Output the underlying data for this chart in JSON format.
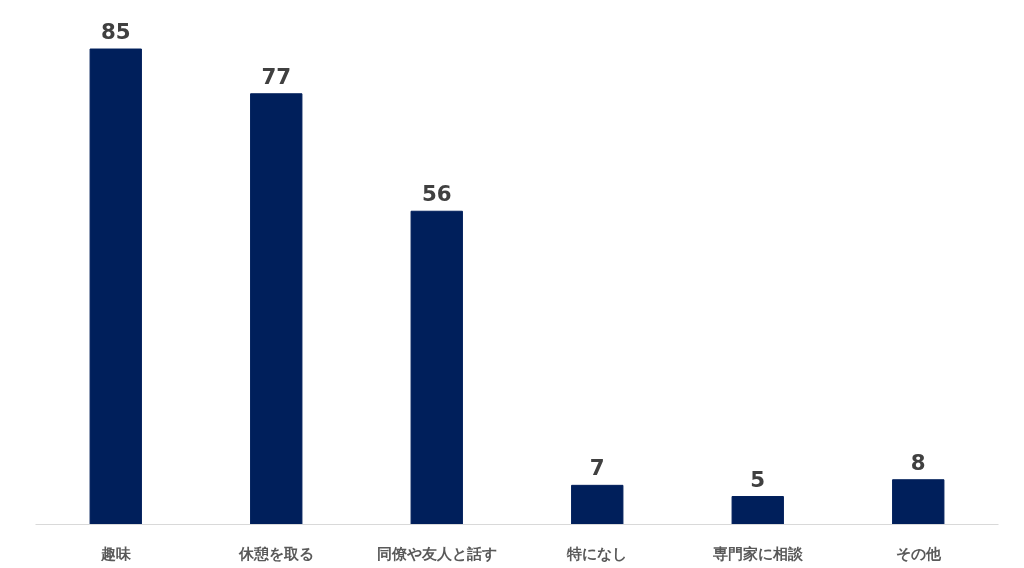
{
  "chart_data": {
    "type": "bar",
    "categories": [
      "趣味",
      "休憩を取る",
      "同僚や友人と話す",
      "特になし",
      "専門家に相談",
      "その他"
    ],
    "values": [
      85,
      77,
      56,
      7,
      5,
      8
    ],
    "color": "#001f5b",
    "data_labels": true,
    "grid": false
  }
}
